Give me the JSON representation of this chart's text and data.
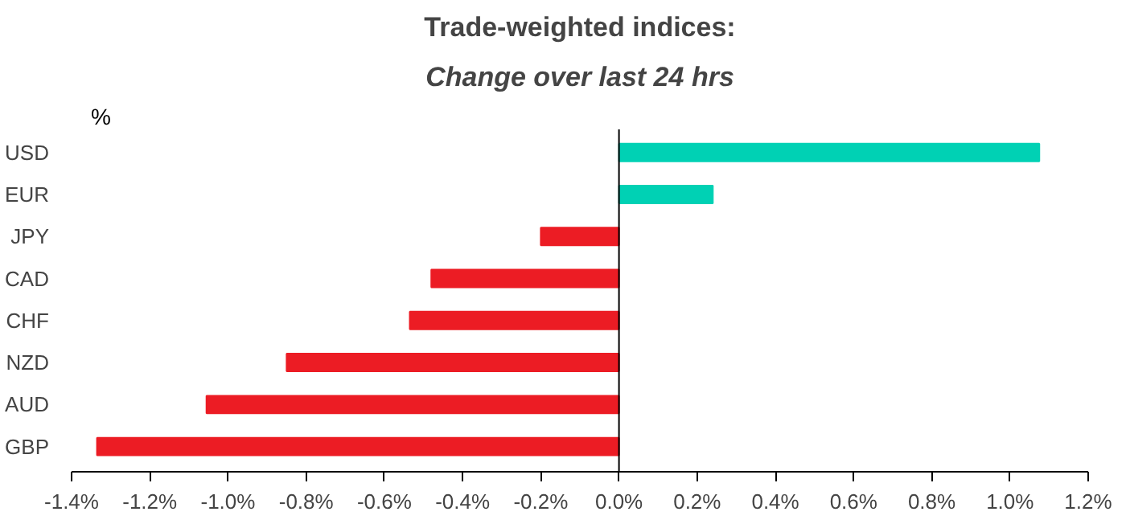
{
  "chart_data": {
    "type": "bar",
    "orientation": "horizontal",
    "title": "Trade-weighted indices:",
    "subtitle": "Change over last 24 hrs",
    "categories": [
      "USD",
      "EUR",
      "JPY",
      "CAD",
      "CHF",
      "NZD",
      "AUD",
      "GBP"
    ],
    "values": [
      1.075,
      0.24,
      -0.2,
      -0.48,
      -0.535,
      -0.85,
      -1.055,
      -1.335
    ],
    "colors": [
      "#00d1b4",
      "#00d1b4",
      "#ec1c24",
      "#ec1c24",
      "#ec1c24",
      "#ec1c24",
      "#ec1c24",
      "#ec1c24"
    ],
    "xlim": [
      -1.4,
      1.2
    ],
    "xticks": [
      {
        "value": -1.4,
        "label": "-1.4%"
      },
      {
        "value": -1.2,
        "label": "-1.2%"
      },
      {
        "value": -1.0,
        "label": "-1.0%"
      },
      {
        "value": -0.8,
        "label": "-0.8%"
      },
      {
        "value": -0.6,
        "label": "-0.6%"
      },
      {
        "value": -0.4,
        "label": "-0.4%"
      },
      {
        "value": -0.2,
        "label": "-0.2%"
      },
      {
        "value": 0,
        "label": "0.0%"
      },
      {
        "value": 0.2,
        "label": "0.2%"
      },
      {
        "value": 0.4,
        "label": "0.4%"
      },
      {
        "value": 0.6,
        "label": "0.6%"
      },
      {
        "value": 0.8,
        "label": "0.8%"
      },
      {
        "value": 1.0,
        "label": "1.0%"
      },
      {
        "value": 1.2,
        "label": "1.2%"
      }
    ],
    "ylabel": "%"
  }
}
